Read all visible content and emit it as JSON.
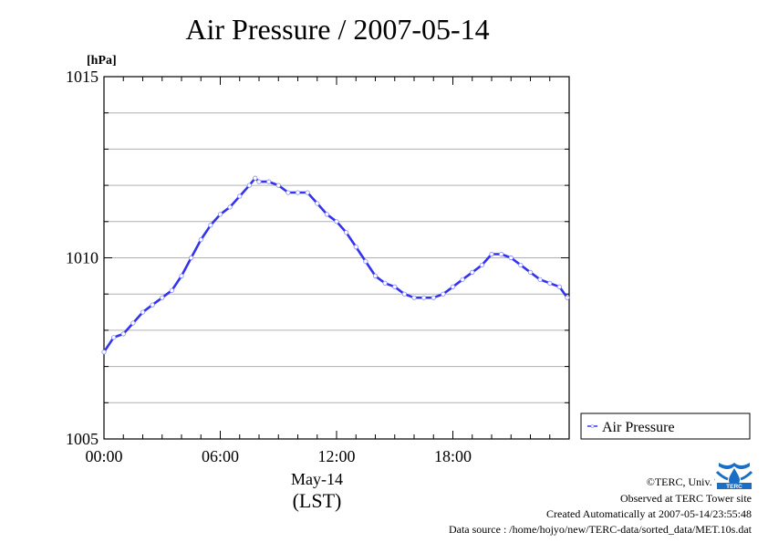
{
  "chart_data": {
    "type": "line",
    "title": "Air Pressure / 2007-05-14",
    "ylabel": "[hPa]",
    "xlabel": "May-14",
    "xlabel2": "(LST)",
    "ylim": [
      1005,
      1015
    ],
    "xlim": [
      0,
      24
    ],
    "y_ticks": [
      "1005",
      "1010",
      "1015"
    ],
    "x_ticks": [
      "00:00",
      "06:00",
      "12:00",
      "18:00"
    ],
    "x_tick_values": [
      0,
      6,
      12,
      18
    ],
    "y_grid": [
      1006,
      1007,
      1008,
      1009,
      1010,
      1011,
      1012,
      1013,
      1014
    ],
    "grid": true,
    "legend_position": "right-bottom",
    "series": [
      {
        "name": "Air Pressure",
        "color": "#3333ee",
        "x_unit": "hour",
        "x": [
          0.0,
          0.5,
          1.0,
          1.5,
          2.0,
          2.5,
          3.0,
          3.5,
          4.0,
          4.5,
          5.0,
          5.5,
          6.0,
          6.5,
          7.0,
          7.5,
          7.8,
          8.0,
          8.5,
          9.0,
          9.5,
          10.0,
          10.5,
          11.0,
          11.5,
          12.0,
          12.5,
          13.0,
          13.5,
          14.0,
          14.5,
          15.0,
          15.5,
          16.0,
          16.5,
          17.0,
          17.5,
          18.0,
          18.5,
          19.0,
          19.5,
          20.0,
          20.5,
          21.0,
          21.5,
          22.0,
          22.5,
          23.0,
          23.5,
          23.9
        ],
        "y": [
          1007.4,
          1007.8,
          1007.9,
          1008.2,
          1008.5,
          1008.7,
          1008.9,
          1009.1,
          1009.5,
          1010.0,
          1010.5,
          1010.9,
          1011.2,
          1011.4,
          1011.7,
          1012.0,
          1012.2,
          1012.1,
          1012.1,
          1012.0,
          1011.8,
          1011.8,
          1011.8,
          1011.5,
          1011.2,
          1011.0,
          1010.7,
          1010.3,
          1009.9,
          1009.5,
          1009.3,
          1009.2,
          1009.0,
          1008.9,
          1008.9,
          1008.9,
          1009.0,
          1009.2,
          1009.4,
          1009.6,
          1009.8,
          1010.1,
          1010.1,
          1010.0,
          1009.8,
          1009.6,
          1009.4,
          1009.3,
          1009.2,
          1008.9
        ]
      }
    ]
  },
  "credits": {
    "line1": "©TERC, Univ. Tsukuba",
    "line2": "Observed at TERC Tower site",
    "line3": "Created Automatically at 2007-05-14/23:55:48",
    "line4": "Data source : /home/hojyo/new/TERC-data/sorted_data/MET.10s.dat"
  },
  "logo": {
    "text": "TERC",
    "color": "#1a6fc4"
  }
}
